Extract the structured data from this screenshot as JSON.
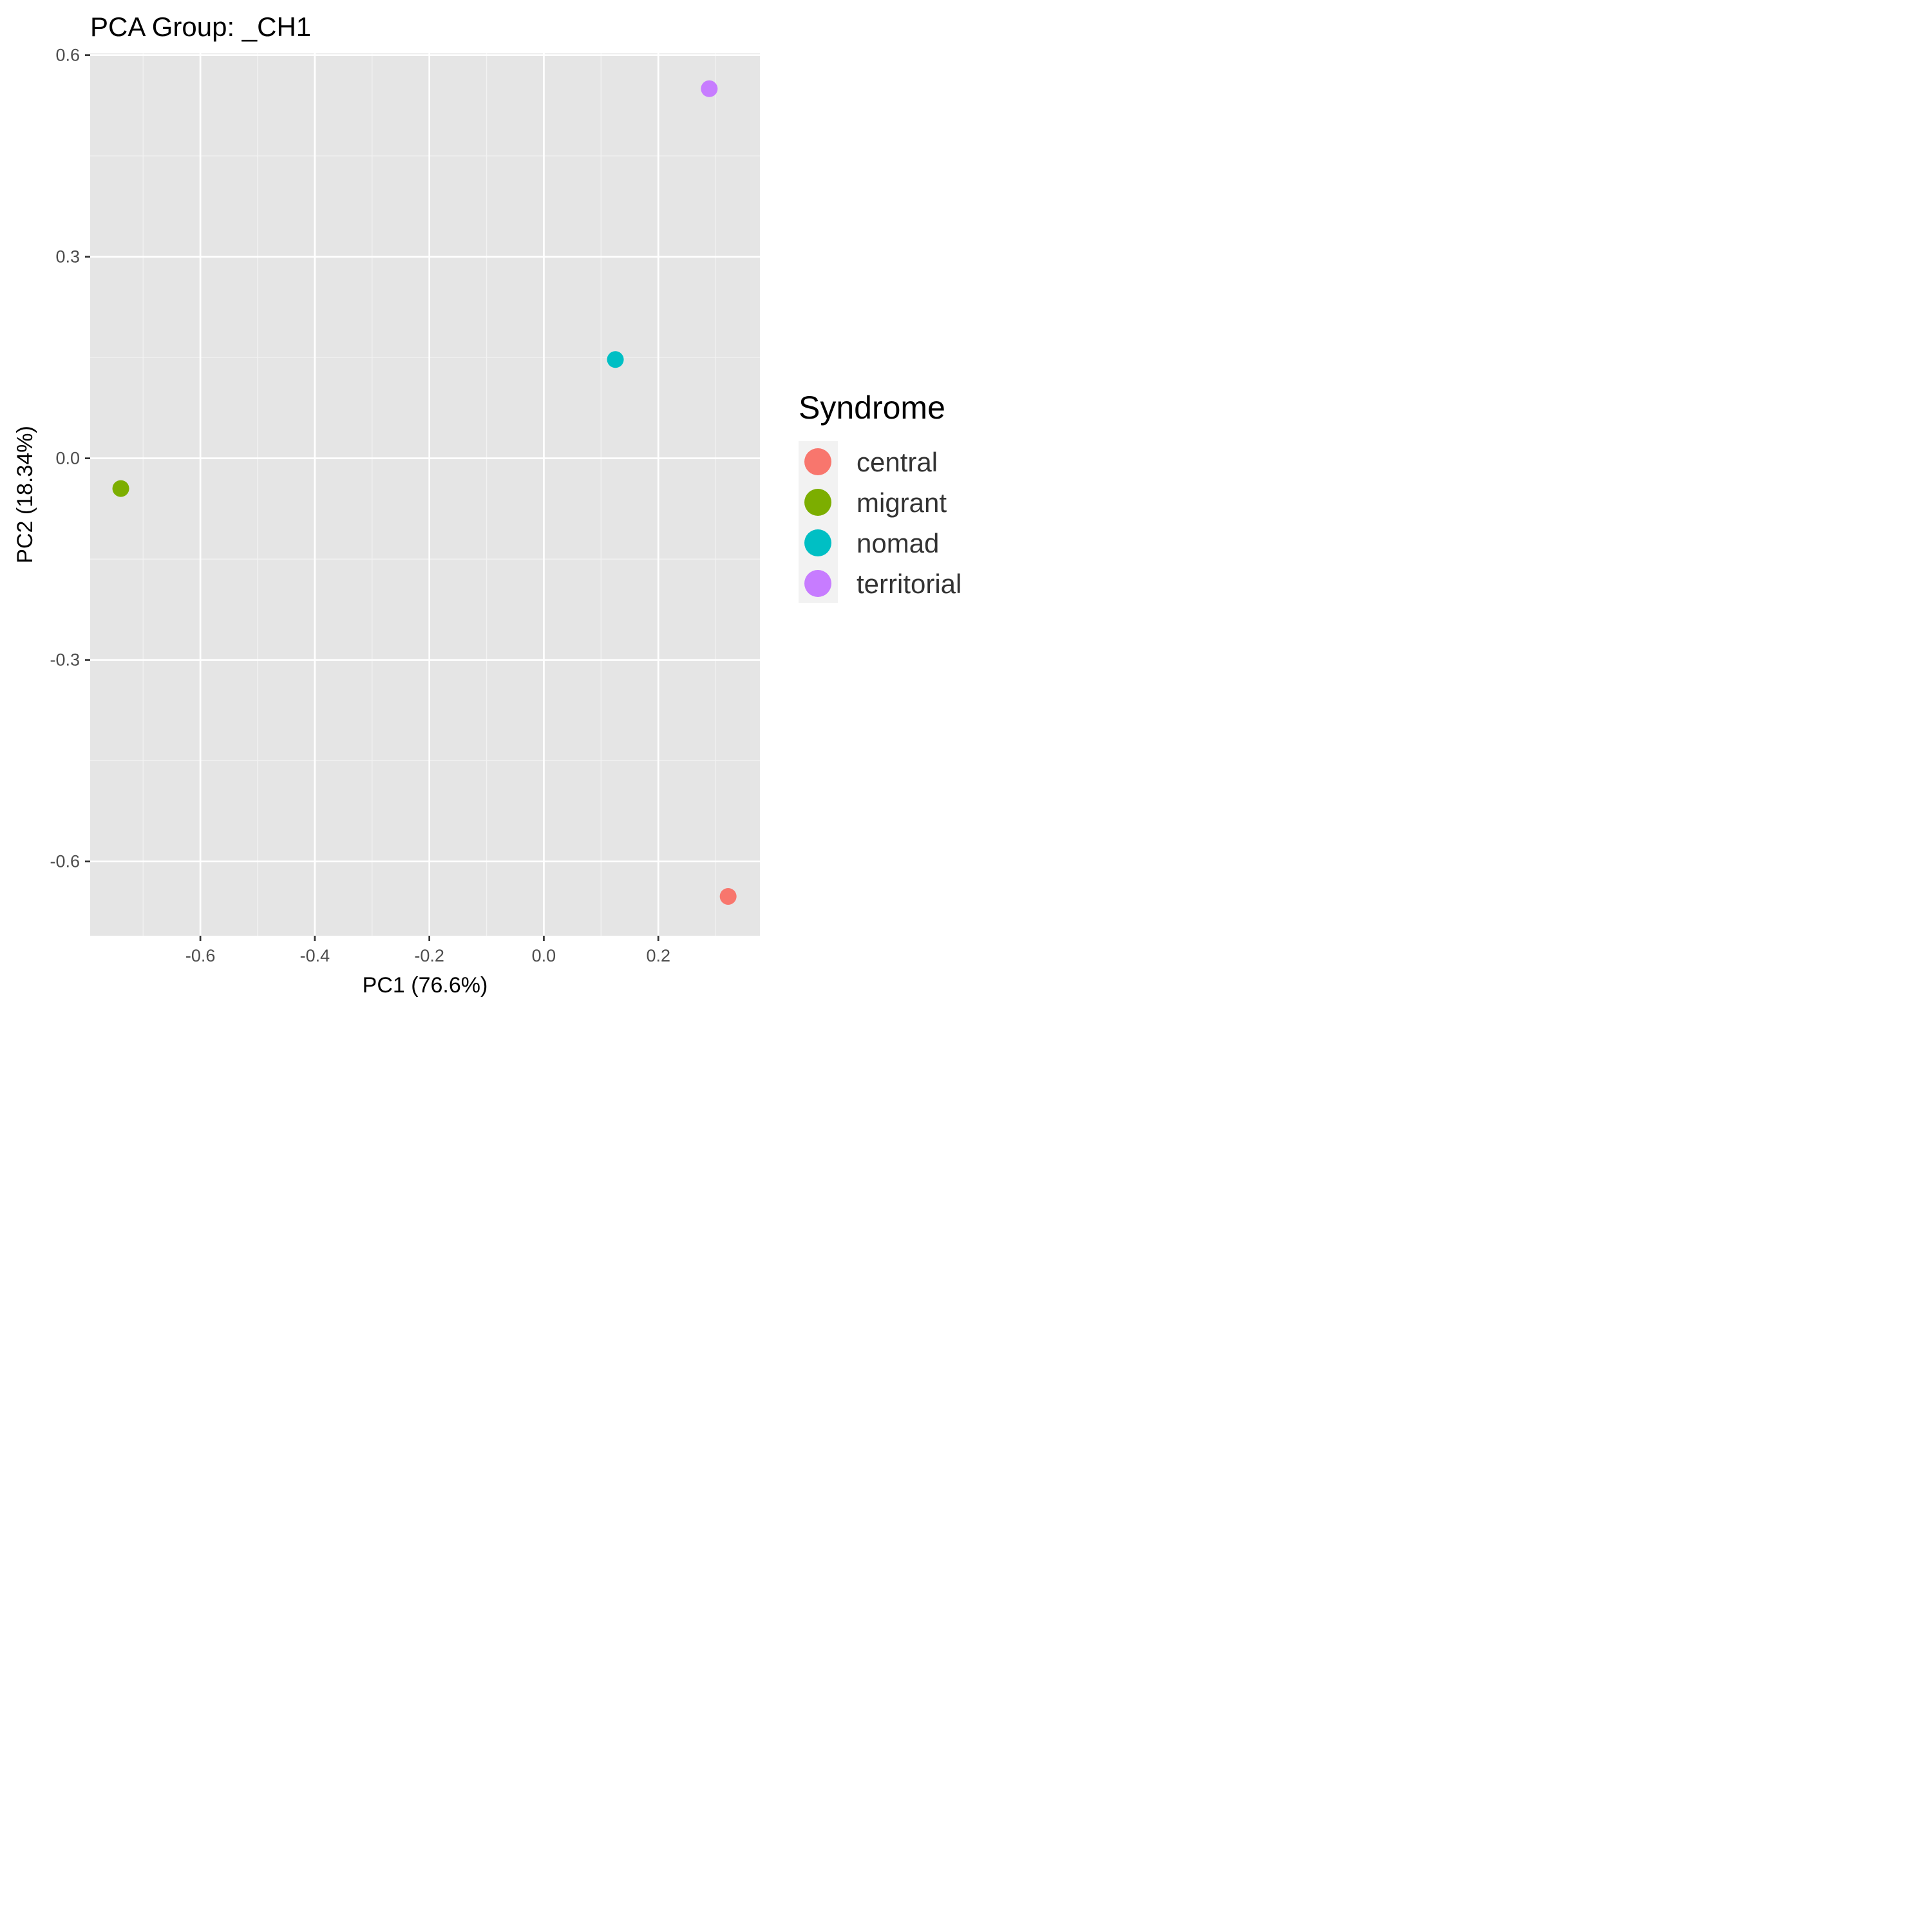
{
  "chart_data": {
    "type": "scatter",
    "title": "PCA Group:  _CH1",
    "xlabel": "PC1 (76.6%)",
    "ylabel": "PC2 (18.34%)",
    "xlim": [
      -0.7925,
      0.3775
    ],
    "ylim": [
      -0.7105,
      0.6025
    ],
    "x_ticks": [
      -0.6,
      -0.4,
      -0.2,
      0.0,
      0.2
    ],
    "x_tick_labels": [
      "-0.6",
      "-0.4",
      "-0.2",
      "0.0",
      "0.2"
    ],
    "y_ticks": [
      0.6,
      0.3,
      0.0,
      -0.3,
      -0.6
    ],
    "y_tick_labels": [
      "0.6",
      "0.3",
      "0.0",
      "-0.3",
      "-0.6"
    ],
    "grid": true,
    "legend": {
      "title": "Syndrome",
      "placement": "right"
    },
    "series": [
      {
        "name": "central",
        "color": "#F8766D",
        "points": [
          {
            "x": 0.322,
            "y": -0.652
          }
        ]
      },
      {
        "name": "migrant",
        "color": "#7CAE00",
        "points": [
          {
            "x": -0.739,
            "y": -0.045
          }
        ]
      },
      {
        "name": "nomad",
        "color": "#00BFC4",
        "points": [
          {
            "x": 0.125,
            "y": 0.147
          }
        ]
      },
      {
        "name": "territorial",
        "color": "#C77CFF",
        "points": [
          {
            "x": 0.289,
            "y": 0.55
          }
        ]
      }
    ]
  }
}
